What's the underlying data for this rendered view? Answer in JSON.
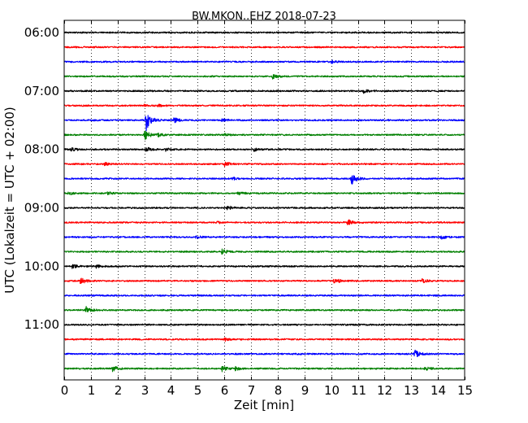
{
  "chart_data": {
    "type": "line",
    "title": "BW.MKON..EHZ 2018-07-23",
    "xlabel": "Zeit  [min]",
    "ylabel": "UTC (Lokalzeit = UTC + 02:00)",
    "xlim": [
      0,
      15
    ],
    "x_ticks": [
      0,
      1,
      2,
      3,
      4,
      5,
      6,
      7,
      8,
      9,
      10,
      11,
      12,
      13,
      14,
      15
    ],
    "x_tick_labels": [
      "0",
      "1",
      "2",
      "3",
      "4",
      "5",
      "6",
      "7",
      "8",
      "9",
      "10",
      "11",
      "12",
      "13",
      "14",
      "15"
    ],
    "y_tick_labels": [
      "06:00",
      "07:00",
      "08:00",
      "09:00",
      "10:00",
      "11:00"
    ],
    "vertical_grid": "dotted",
    "color_cycle": [
      "#000000",
      "#ff0000",
      "#0000ff",
      "#008000"
    ],
    "series": [
      {
        "start": "06:00",
        "color": "#000000",
        "events": []
      },
      {
        "start": "06:15",
        "color": "#ff0000",
        "events": []
      },
      {
        "start": "06:30",
        "color": "#0000ff",
        "events": [
          {
            "t": 10.0,
            "amp": 0.18
          }
        ]
      },
      {
        "start": "06:45",
        "color": "#008000",
        "events": [
          {
            "t": 7.8,
            "amp": 0.35
          }
        ]
      },
      {
        "start": "07:00",
        "color": "#000000",
        "events": [
          {
            "t": 11.2,
            "amp": 0.25
          }
        ]
      },
      {
        "start": "07:15",
        "color": "#ff0000",
        "events": [
          {
            "t": 3.0,
            "amp": 0.1
          },
          {
            "t": 3.5,
            "amp": 0.18
          }
        ]
      },
      {
        "start": "07:30",
        "color": "#0000ff",
        "events": [
          {
            "t": 3.05,
            "amp": 1.6
          },
          {
            "t": 4.1,
            "amp": 0.35
          },
          {
            "t": 5.9,
            "amp": 0.2
          }
        ]
      },
      {
        "start": "07:45",
        "color": "#008000",
        "events": [
          {
            "t": 3.0,
            "amp": 0.75
          },
          {
            "t": 3.5,
            "amp": 0.25
          },
          {
            "t": 6.0,
            "amp": 0.2
          }
        ]
      },
      {
        "start": "08:00",
        "color": "#000000",
        "events": [
          {
            "t": 0.25,
            "amp": 0.3
          },
          {
            "t": 3.05,
            "amp": 0.3
          },
          {
            "t": 3.8,
            "amp": 0.2
          },
          {
            "t": 7.1,
            "amp": 0.2
          }
        ]
      },
      {
        "start": "08:15",
        "color": "#ff0000",
        "events": [
          {
            "t": 1.5,
            "amp": 0.2
          },
          {
            "t": 6.0,
            "amp": 0.3
          }
        ]
      },
      {
        "start": "08:30",
        "color": "#0000ff",
        "events": [
          {
            "t": 6.3,
            "amp": 0.2
          },
          {
            "t": 10.75,
            "amp": 0.85
          }
        ]
      },
      {
        "start": "08:45",
        "color": "#008000",
        "events": [
          {
            "t": 0.15,
            "amp": 0.2
          },
          {
            "t": 1.6,
            "amp": 0.25
          },
          {
            "t": 6.5,
            "amp": 0.2
          }
        ]
      },
      {
        "start": "09:00",
        "color": "#000000",
        "events": [
          {
            "t": 6.1,
            "amp": 0.3
          }
        ]
      },
      {
        "start": "09:15",
        "color": "#ff0000",
        "events": [
          {
            "t": 5.7,
            "amp": 0.15
          },
          {
            "t": 10.6,
            "amp": 0.5
          }
        ]
      },
      {
        "start": "09:30",
        "color": "#0000ff",
        "events": [
          {
            "t": 4.9,
            "amp": 0.25
          },
          {
            "t": 14.1,
            "amp": 0.3
          }
        ]
      },
      {
        "start": "09:45",
        "color": "#008000",
        "events": [
          {
            "t": 5.9,
            "amp": 0.3
          }
        ]
      },
      {
        "start": "10:00",
        "color": "#000000",
        "events": [
          {
            "t": 0.3,
            "amp": 0.3
          },
          {
            "t": 1.2,
            "amp": 0.2
          }
        ]
      },
      {
        "start": "10:15",
        "color": "#ff0000",
        "events": [
          {
            "t": 0.6,
            "amp": 0.45
          },
          {
            "t": 10.1,
            "amp": 0.55
          },
          {
            "t": 13.4,
            "amp": 0.25
          }
        ]
      },
      {
        "start": "10:30",
        "color": "#0000ff",
        "events": []
      },
      {
        "start": "10:45",
        "color": "#008000",
        "events": [
          {
            "t": 0.8,
            "amp": 0.5
          }
        ]
      },
      {
        "start": "11:00",
        "color": "#000000",
        "events": []
      },
      {
        "start": "11:15",
        "color": "#ff0000",
        "events": [
          {
            "t": 6.0,
            "amp": 0.2
          }
        ]
      },
      {
        "start": "11:30",
        "color": "#0000ff",
        "events": [
          {
            "t": 13.1,
            "amp": 0.6
          }
        ]
      },
      {
        "start": "11:45",
        "color": "#008000",
        "events": [
          {
            "t": 1.8,
            "amp": 0.4
          },
          {
            "t": 5.9,
            "amp": 0.35
          },
          {
            "t": 6.4,
            "amp": 0.3
          },
          {
            "t": 13.5,
            "amp": 0.3
          }
        ]
      }
    ]
  }
}
